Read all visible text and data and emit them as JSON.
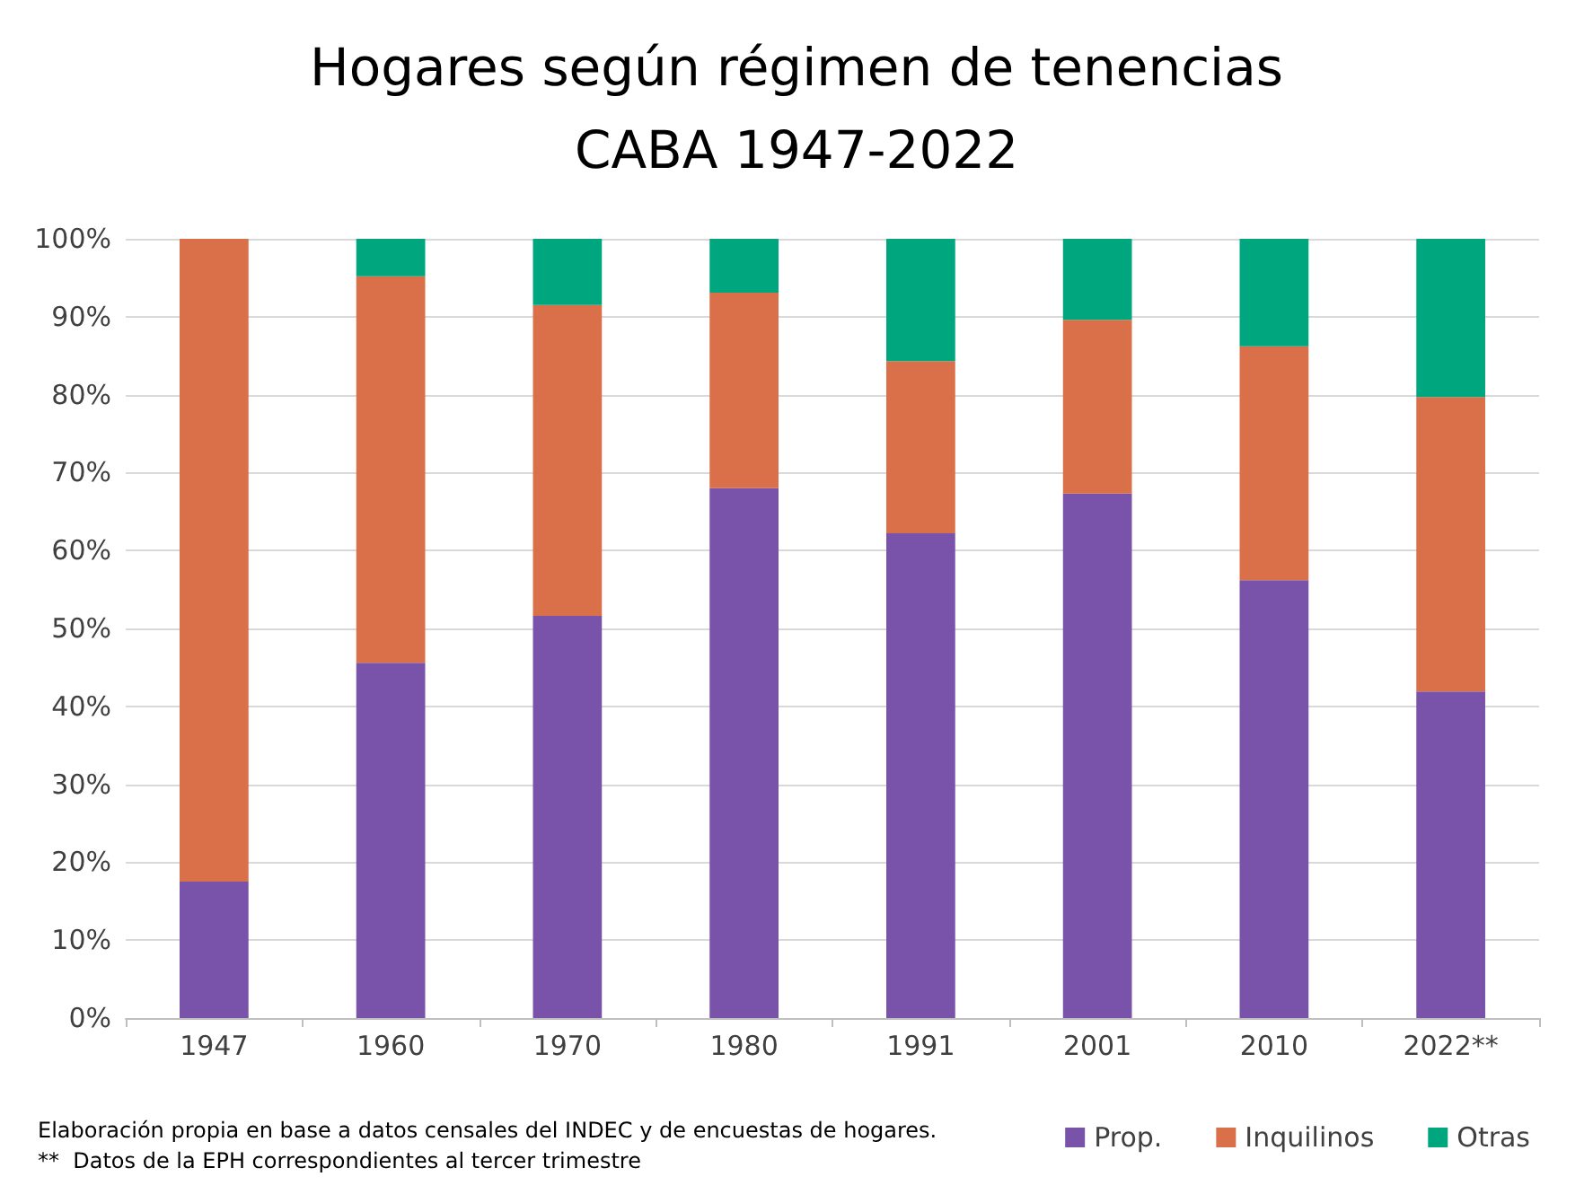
{
  "chart_data": {
    "type": "bar",
    "title": "Hogares según régimen de tenencias",
    "subtitle": "CABA 1947-2022",
    "categories": [
      "1947",
      "1960",
      "1970",
      "1980",
      "1991",
      "2001",
      "2010",
      "2022**"
    ],
    "stacked": true,
    "series": [
      {
        "name": "Prop.",
        "color": "#7953a9",
        "values": [
          17.5,
          45.6,
          51.6,
          68.0,
          62.2,
          67.3,
          56.2,
          41.9
        ]
      },
      {
        "name": "Inquilinos",
        "color": "#d9704a",
        "values": [
          82.5,
          49.6,
          39.9,
          25.1,
          22.1,
          22.3,
          30.0,
          37.8
        ]
      },
      {
        "name": "Otras",
        "color": "#00a67e",
        "values": [
          0,
          4.8,
          8.5,
          6.9,
          15.7,
          10.4,
          13.8,
          20.3
        ]
      }
    ],
    "ylim": [
      0,
      100
    ],
    "yticks": [
      {
        "value": 0,
        "label": "0%"
      },
      {
        "value": 10,
        "label": "10%"
      },
      {
        "value": 20,
        "label": "20%"
      },
      {
        "value": 30,
        "label": "30%"
      },
      {
        "value": 40,
        "label": "40%"
      },
      {
        "value": 50,
        "label": "50%"
      },
      {
        "value": 60,
        "label": "60%"
      },
      {
        "value": 70,
        "label": "70%"
      },
      {
        "value": 80,
        "label": "80%"
      },
      {
        "value": 90,
        "label": "90%"
      },
      {
        "value": 100,
        "label": "100%"
      }
    ],
    "grid": "y",
    "legend": "bottom right",
    "annotations": [
      "Elaboración propia en base a datos censales del INDEC y de encuestas de hogares.",
      "**  Datos de la EPH correspondientes al tercer trimestre"
    ]
  }
}
